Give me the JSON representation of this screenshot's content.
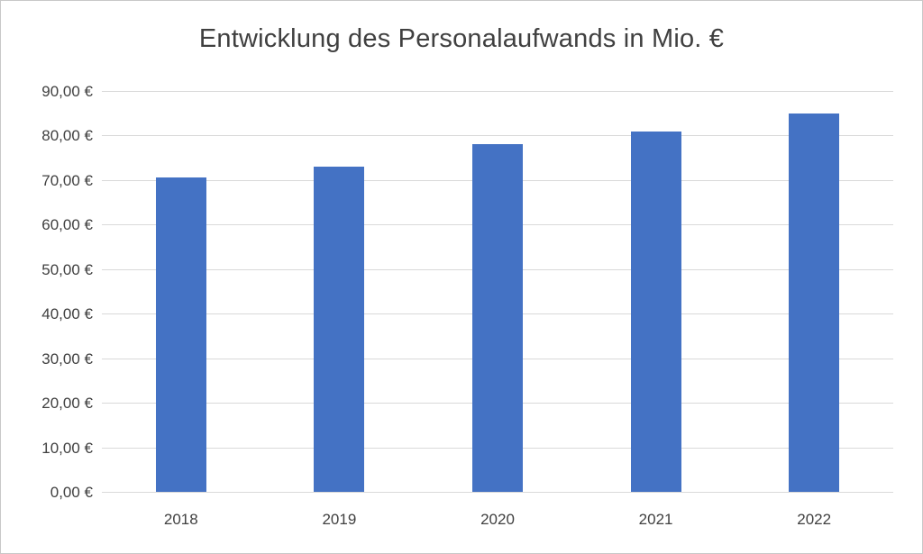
{
  "chart_data": {
    "type": "bar",
    "title": "Entwicklung des Personalaufwands in Mio. €",
    "categories": [
      "2018",
      "2019",
      "2020",
      "2021",
      "2022"
    ],
    "values": [
      70.5,
      73,
      78,
      81,
      85
    ],
    "xlabel": "",
    "ylabel": "",
    "ylim": [
      0,
      90
    ],
    "y_tick_values": [
      0,
      10,
      20,
      30,
      40,
      50,
      60,
      70,
      80,
      90
    ],
    "y_tick_labels": [
      "0,00 €",
      "10,00 €",
      "20,00 €",
      "30,00 €",
      "40,00 €",
      "50,00 €",
      "60,00 €",
      "70,00 €",
      "80,00 €",
      "90,00 €"
    ],
    "grid": true,
    "legend": false,
    "colors": {
      "bar": "#4472C4",
      "gridline": "#D9D9D9",
      "text": "#404040",
      "border": "#C8C8C8",
      "background": "#FFFFFF"
    }
  }
}
